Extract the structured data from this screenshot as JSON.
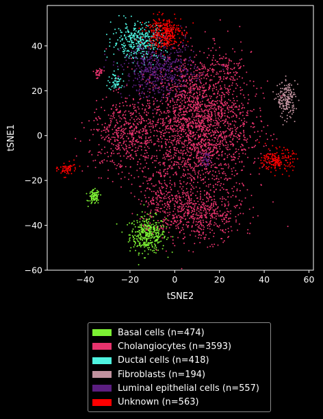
{
  "chart_data": {
    "type": "scatter",
    "title": "",
    "xlabel": "tSNE2",
    "ylabel": "tSNE1",
    "xlim": [
      -57,
      62
    ],
    "ylim": [
      -60,
      58
    ],
    "xticks": [
      -40,
      -20,
      0,
      20,
      40,
      60
    ],
    "yticks": [
      -60,
      -40,
      -20,
      0,
      20,
      40
    ],
    "xtick_labels": [
      "−40",
      "−20",
      "0",
      "20",
      "40",
      "60"
    ],
    "ytick_labels": [
      "−60",
      "−40",
      "−20",
      "0",
      "20",
      "40"
    ],
    "grid": false,
    "legend_position": "bottom",
    "series": [
      {
        "name": "Basal cells",
        "label": "Basal cells (n=474)",
        "count": 474,
        "color": "#7cf033",
        "clusters": [
          [
            -12,
            -44,
            4,
            4,
            380
          ],
          [
            -36,
            -27.5,
            1.2,
            1.6,
            94
          ]
        ]
      },
      {
        "name": "Cholangiocytes",
        "label": "Cholangiocytes (n=3593)",
        "count": 3593,
        "color": "#e8336d",
        "clusters": [
          [
            10,
            5,
            12,
            16,
            2300
          ],
          [
            -22,
            0,
            8,
            8,
            500
          ],
          [
            12,
            -35,
            9,
            6,
            500
          ],
          [
            -5,
            -28,
            6,
            8,
            200
          ],
          [
            22,
            30,
            4,
            3,
            60
          ],
          [
            -34,
            28,
            1.2,
            1.2,
            33
          ]
        ]
      },
      {
        "name": "Ductal cells",
        "label": "Ductal cells (n=418)",
        "count": 418,
        "color": "#4ef3e0",
        "clusters": [
          [
            -16,
            42,
            6,
            4,
            360
          ],
          [
            -26,
            24,
            2,
            2,
            58
          ]
        ]
      },
      {
        "name": "Fibroblasts",
        "label": "Fibroblasts (n=194)",
        "count": 194,
        "color": "#c1929e",
        "clusters": [
          [
            50,
            16,
            2,
            4,
            194
          ]
        ]
      },
      {
        "name": "Luminal epithelial cells",
        "label": "Luminal epithelial cells (n=557)",
        "count": 557,
        "color": "#5b1e80",
        "clusters": [
          [
            -7,
            29,
            8,
            6,
            520
          ],
          [
            14,
            -11,
            1.5,
            2,
            37
          ]
        ]
      },
      {
        "name": "Unknown",
        "label": "Unknown (n=563)",
        "count": 563,
        "color": "#ff0000",
        "clusters": [
          [
            -5,
            46,
            4,
            3.5,
            320
          ],
          [
            46,
            -11,
            3.5,
            2.5,
            180
          ],
          [
            -48,
            -15,
            2,
            1.5,
            63
          ]
        ]
      }
    ]
  }
}
